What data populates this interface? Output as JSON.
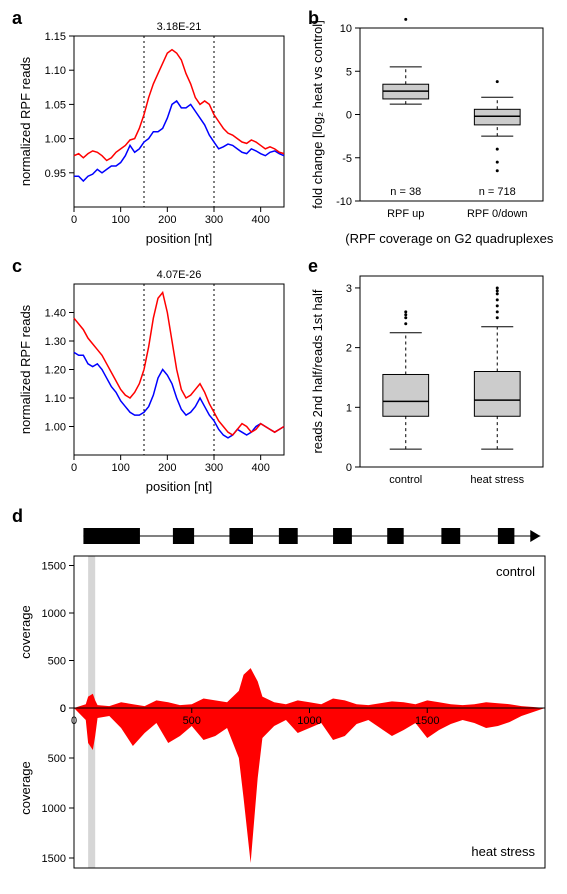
{
  "labels": {
    "a": "a",
    "b": "b",
    "c": "c",
    "d": "d",
    "e": "e"
  },
  "panel_a": {
    "type": "line",
    "title": "3.18E-21",
    "xlabel": "position [nt]",
    "ylabel": "normalized RPF reads",
    "xlim": [
      0,
      450
    ],
    "ylim": [
      0.9,
      1.15
    ],
    "xticks": [
      0,
      100,
      200,
      300,
      400
    ],
    "yticks": [
      0.95,
      1.0,
      1.05,
      1.1,
      1.15
    ],
    "dashed_x": [
      150,
      300
    ],
    "series": [
      {
        "color": "#0000ff",
        "x": [
          0,
          10,
          20,
          30,
          40,
          50,
          60,
          70,
          80,
          90,
          100,
          110,
          120,
          130,
          140,
          150,
          160,
          170,
          180,
          190,
          200,
          210,
          220,
          230,
          240,
          250,
          260,
          270,
          280,
          290,
          300,
          310,
          320,
          330,
          340,
          350,
          360,
          370,
          380,
          390,
          400,
          410,
          420,
          430,
          440,
          450
        ],
        "y": [
          0.945,
          0.945,
          0.938,
          0.945,
          0.948,
          0.955,
          0.95,
          0.955,
          0.96,
          0.96,
          0.965,
          0.975,
          0.99,
          0.98,
          0.985,
          0.995,
          1.0,
          1.01,
          1.01,
          1.015,
          1.03,
          1.05,
          1.055,
          1.045,
          1.045,
          1.05,
          1.04,
          1.03,
          1.02,
          1.005,
          0.995,
          0.985,
          0.988,
          0.992,
          0.99,
          0.985,
          0.98,
          0.978,
          0.985,
          0.982,
          0.978,
          0.975,
          0.98,
          0.982,
          0.978,
          0.975
        ]
      },
      {
        "color": "#ff0000",
        "x": [
          0,
          10,
          20,
          30,
          40,
          50,
          60,
          70,
          80,
          90,
          100,
          110,
          120,
          130,
          140,
          150,
          160,
          170,
          180,
          190,
          200,
          210,
          220,
          230,
          240,
          250,
          260,
          270,
          280,
          290,
          300,
          310,
          320,
          330,
          340,
          350,
          360,
          370,
          380,
          390,
          400,
          410,
          420,
          430,
          440,
          450
        ],
        "y": [
          0.975,
          0.978,
          0.972,
          0.978,
          0.982,
          0.98,
          0.975,
          0.968,
          0.972,
          0.98,
          0.985,
          0.99,
          0.998,
          1.0,
          1.015,
          1.035,
          1.06,
          1.08,
          1.095,
          1.11,
          1.125,
          1.13,
          1.125,
          1.115,
          1.095,
          1.08,
          1.06,
          1.05,
          1.055,
          1.05,
          1.035,
          1.025,
          1.015,
          1.008,
          1.005,
          1.0,
          0.995,
          0.993,
          0.998,
          0.995,
          0.99,
          0.985,
          0.988,
          0.985,
          0.98,
          0.978
        ]
      }
    ]
  },
  "panel_b": {
    "type": "boxplot",
    "ylabel": "fold change [log₂ heat vs control]",
    "xlabel": "(RPF coverage on G2 quadruplexes)",
    "ylim": [
      -10,
      10
    ],
    "yticks": [
      -10,
      -5,
      0,
      5,
      10
    ],
    "categories": [
      "RPF up",
      "RPF 0/down"
    ],
    "n_labels": [
      "n = 38",
      "n = 718"
    ],
    "boxes": [
      {
        "q1": 1.8,
        "median": 2.7,
        "q3": 3.5,
        "whisker_low": 1.2,
        "whisker_high": 5.5,
        "outliers": [
          11.0
        ]
      },
      {
        "q1": -1.2,
        "median": -0.2,
        "q3": 0.6,
        "whisker_low": -2.5,
        "whisker_high": 2.0,
        "outliers": [
          -4.0,
          -5.5,
          -6.5,
          3.8
        ]
      }
    ],
    "box_color": "#cccccc"
  },
  "panel_c": {
    "type": "line",
    "title": "4.07E-26",
    "xlabel": "position [nt]",
    "ylabel": "normalized RPF reads",
    "xlim": [
      0,
      450
    ],
    "ylim": [
      0.9,
      1.5
    ],
    "xticks": [
      0,
      100,
      200,
      300,
      400
    ],
    "yticks": [
      1.0,
      1.1,
      1.2,
      1.3,
      1.4
    ],
    "dashed_x": [
      150,
      300
    ],
    "series": [
      {
        "color": "#0000ff",
        "x": [
          0,
          10,
          20,
          30,
          40,
          50,
          60,
          70,
          80,
          90,
          100,
          110,
          120,
          130,
          140,
          150,
          160,
          170,
          180,
          190,
          200,
          210,
          220,
          230,
          240,
          250,
          260,
          270,
          280,
          290,
          300,
          310,
          320,
          330,
          340,
          350,
          360,
          370,
          380,
          390,
          400,
          410,
          420,
          430,
          440,
          450
        ],
        "y": [
          1.26,
          1.25,
          1.25,
          1.22,
          1.21,
          1.22,
          1.2,
          1.17,
          1.14,
          1.12,
          1.09,
          1.07,
          1.05,
          1.04,
          1.04,
          1.05,
          1.07,
          1.11,
          1.17,
          1.2,
          1.18,
          1.15,
          1.1,
          1.06,
          1.04,
          1.05,
          1.07,
          1.1,
          1.07,
          1.04,
          1.02,
          0.99,
          0.97,
          0.96,
          0.97,
          0.99,
          0.98,
          0.97,
          0.98,
          1.0,
          1.01,
          1.0,
          0.99,
          0.98,
          0.99,
          1.0
        ]
      },
      {
        "color": "#ff0000",
        "x": [
          0,
          10,
          20,
          30,
          40,
          50,
          60,
          70,
          80,
          90,
          100,
          110,
          120,
          130,
          140,
          150,
          160,
          170,
          180,
          190,
          200,
          210,
          220,
          230,
          240,
          250,
          260,
          270,
          280,
          290,
          300,
          310,
          320,
          330,
          340,
          350,
          360,
          370,
          380,
          390,
          400,
          410,
          420,
          430,
          440,
          450
        ],
        "y": [
          1.38,
          1.36,
          1.34,
          1.31,
          1.29,
          1.27,
          1.25,
          1.22,
          1.19,
          1.16,
          1.13,
          1.11,
          1.1,
          1.12,
          1.15,
          1.2,
          1.28,
          1.38,
          1.45,
          1.47,
          1.4,
          1.3,
          1.2,
          1.13,
          1.1,
          1.11,
          1.13,
          1.15,
          1.12,
          1.08,
          1.05,
          1.02,
          1.0,
          0.98,
          0.97,
          0.99,
          1.01,
          1.0,
          0.98,
          0.99,
          1.01,
          1.0,
          0.99,
          0.98,
          0.99,
          1.0
        ]
      }
    ]
  },
  "panel_d": {
    "type": "area",
    "ylabel": "coverage",
    "xlim": [
      0,
      2000
    ],
    "ylim": [
      0,
      1600
    ],
    "xticks": [
      0,
      500,
      1000,
      1500
    ],
    "yticks": [
      0,
      500,
      1000,
      1500
    ],
    "top_label": "control",
    "bottom_label": "heat stress",
    "shade_x": [
      60,
      90
    ],
    "shade_color": "#cccccc",
    "gene_model": {
      "start": 40,
      "end": 1980,
      "exons": [
        [
          40,
          280
        ],
        [
          420,
          510
        ],
        [
          660,
          760
        ],
        [
          870,
          950
        ],
        [
          1100,
          1180
        ],
        [
          1330,
          1400
        ],
        [
          1560,
          1640
        ],
        [
          1800,
          1870
        ]
      ],
      "arrow_end": 1980
    },
    "fill_color": "#ff0000",
    "top_data": {
      "x": [
        0,
        50,
        60,
        80,
        90,
        100,
        150,
        200,
        250,
        300,
        350,
        400,
        450,
        500,
        550,
        600,
        650,
        700,
        720,
        750,
        780,
        800,
        850,
        900,
        950,
        1000,
        1050,
        1100,
        1150,
        1200,
        1250,
        1300,
        1350,
        1400,
        1450,
        1500,
        1550,
        1600,
        1650,
        1700,
        1750,
        1800,
        1850,
        1900,
        1950,
        2000
      ],
      "y": [
        0,
        40,
        120,
        150,
        80,
        30,
        20,
        60,
        40,
        20,
        80,
        60,
        30,
        40,
        100,
        80,
        60,
        180,
        350,
        420,
        280,
        120,
        60,
        40,
        80,
        60,
        40,
        100,
        80,
        40,
        30,
        50,
        70,
        60,
        40,
        80,
        60,
        40,
        30,
        40,
        60,
        50,
        40,
        20,
        10,
        0
      ]
    },
    "bottom_data": {
      "x": [
        0,
        50,
        60,
        80,
        90,
        100,
        150,
        200,
        250,
        300,
        350,
        400,
        450,
        500,
        550,
        600,
        650,
        700,
        720,
        750,
        780,
        800,
        850,
        900,
        950,
        1000,
        1050,
        1100,
        1150,
        1200,
        1250,
        1300,
        1350,
        1400,
        1450,
        1500,
        1550,
        1600,
        1650,
        1700,
        1750,
        1800,
        1850,
        1900,
        1950,
        2000
      ],
      "y": [
        0,
        120,
        350,
        420,
        280,
        100,
        80,
        200,
        380,
        250,
        150,
        350,
        280,
        180,
        320,
        280,
        200,
        500,
        900,
        1550,
        700,
        300,
        180,
        120,
        250,
        200,
        150,
        320,
        280,
        160,
        120,
        200,
        280,
        220,
        150,
        300,
        220,
        160,
        120,
        150,
        200,
        180,
        140,
        80,
        40,
        0
      ]
    }
  },
  "panel_e": {
    "type": "boxplot",
    "ylabel": "reads 2nd half/reads 1st half",
    "ylim": [
      0,
      3.2
    ],
    "yticks": [
      0,
      1,
      2,
      3
    ],
    "categories": [
      "control",
      "heat stress"
    ],
    "boxes": [
      {
        "q1": 0.85,
        "median": 1.1,
        "q3": 1.55,
        "whisker_low": 0.3,
        "whisker_high": 2.25,
        "outliers": [
          2.4,
          2.5,
          2.55,
          2.6
        ]
      },
      {
        "q1": 0.85,
        "median": 1.12,
        "q3": 1.6,
        "whisker_low": 0.3,
        "whisker_high": 2.35,
        "outliers": [
          2.5,
          2.6,
          2.7,
          2.8,
          2.9,
          2.95,
          3.0
        ]
      }
    ],
    "box_color": "#cccccc"
  }
}
